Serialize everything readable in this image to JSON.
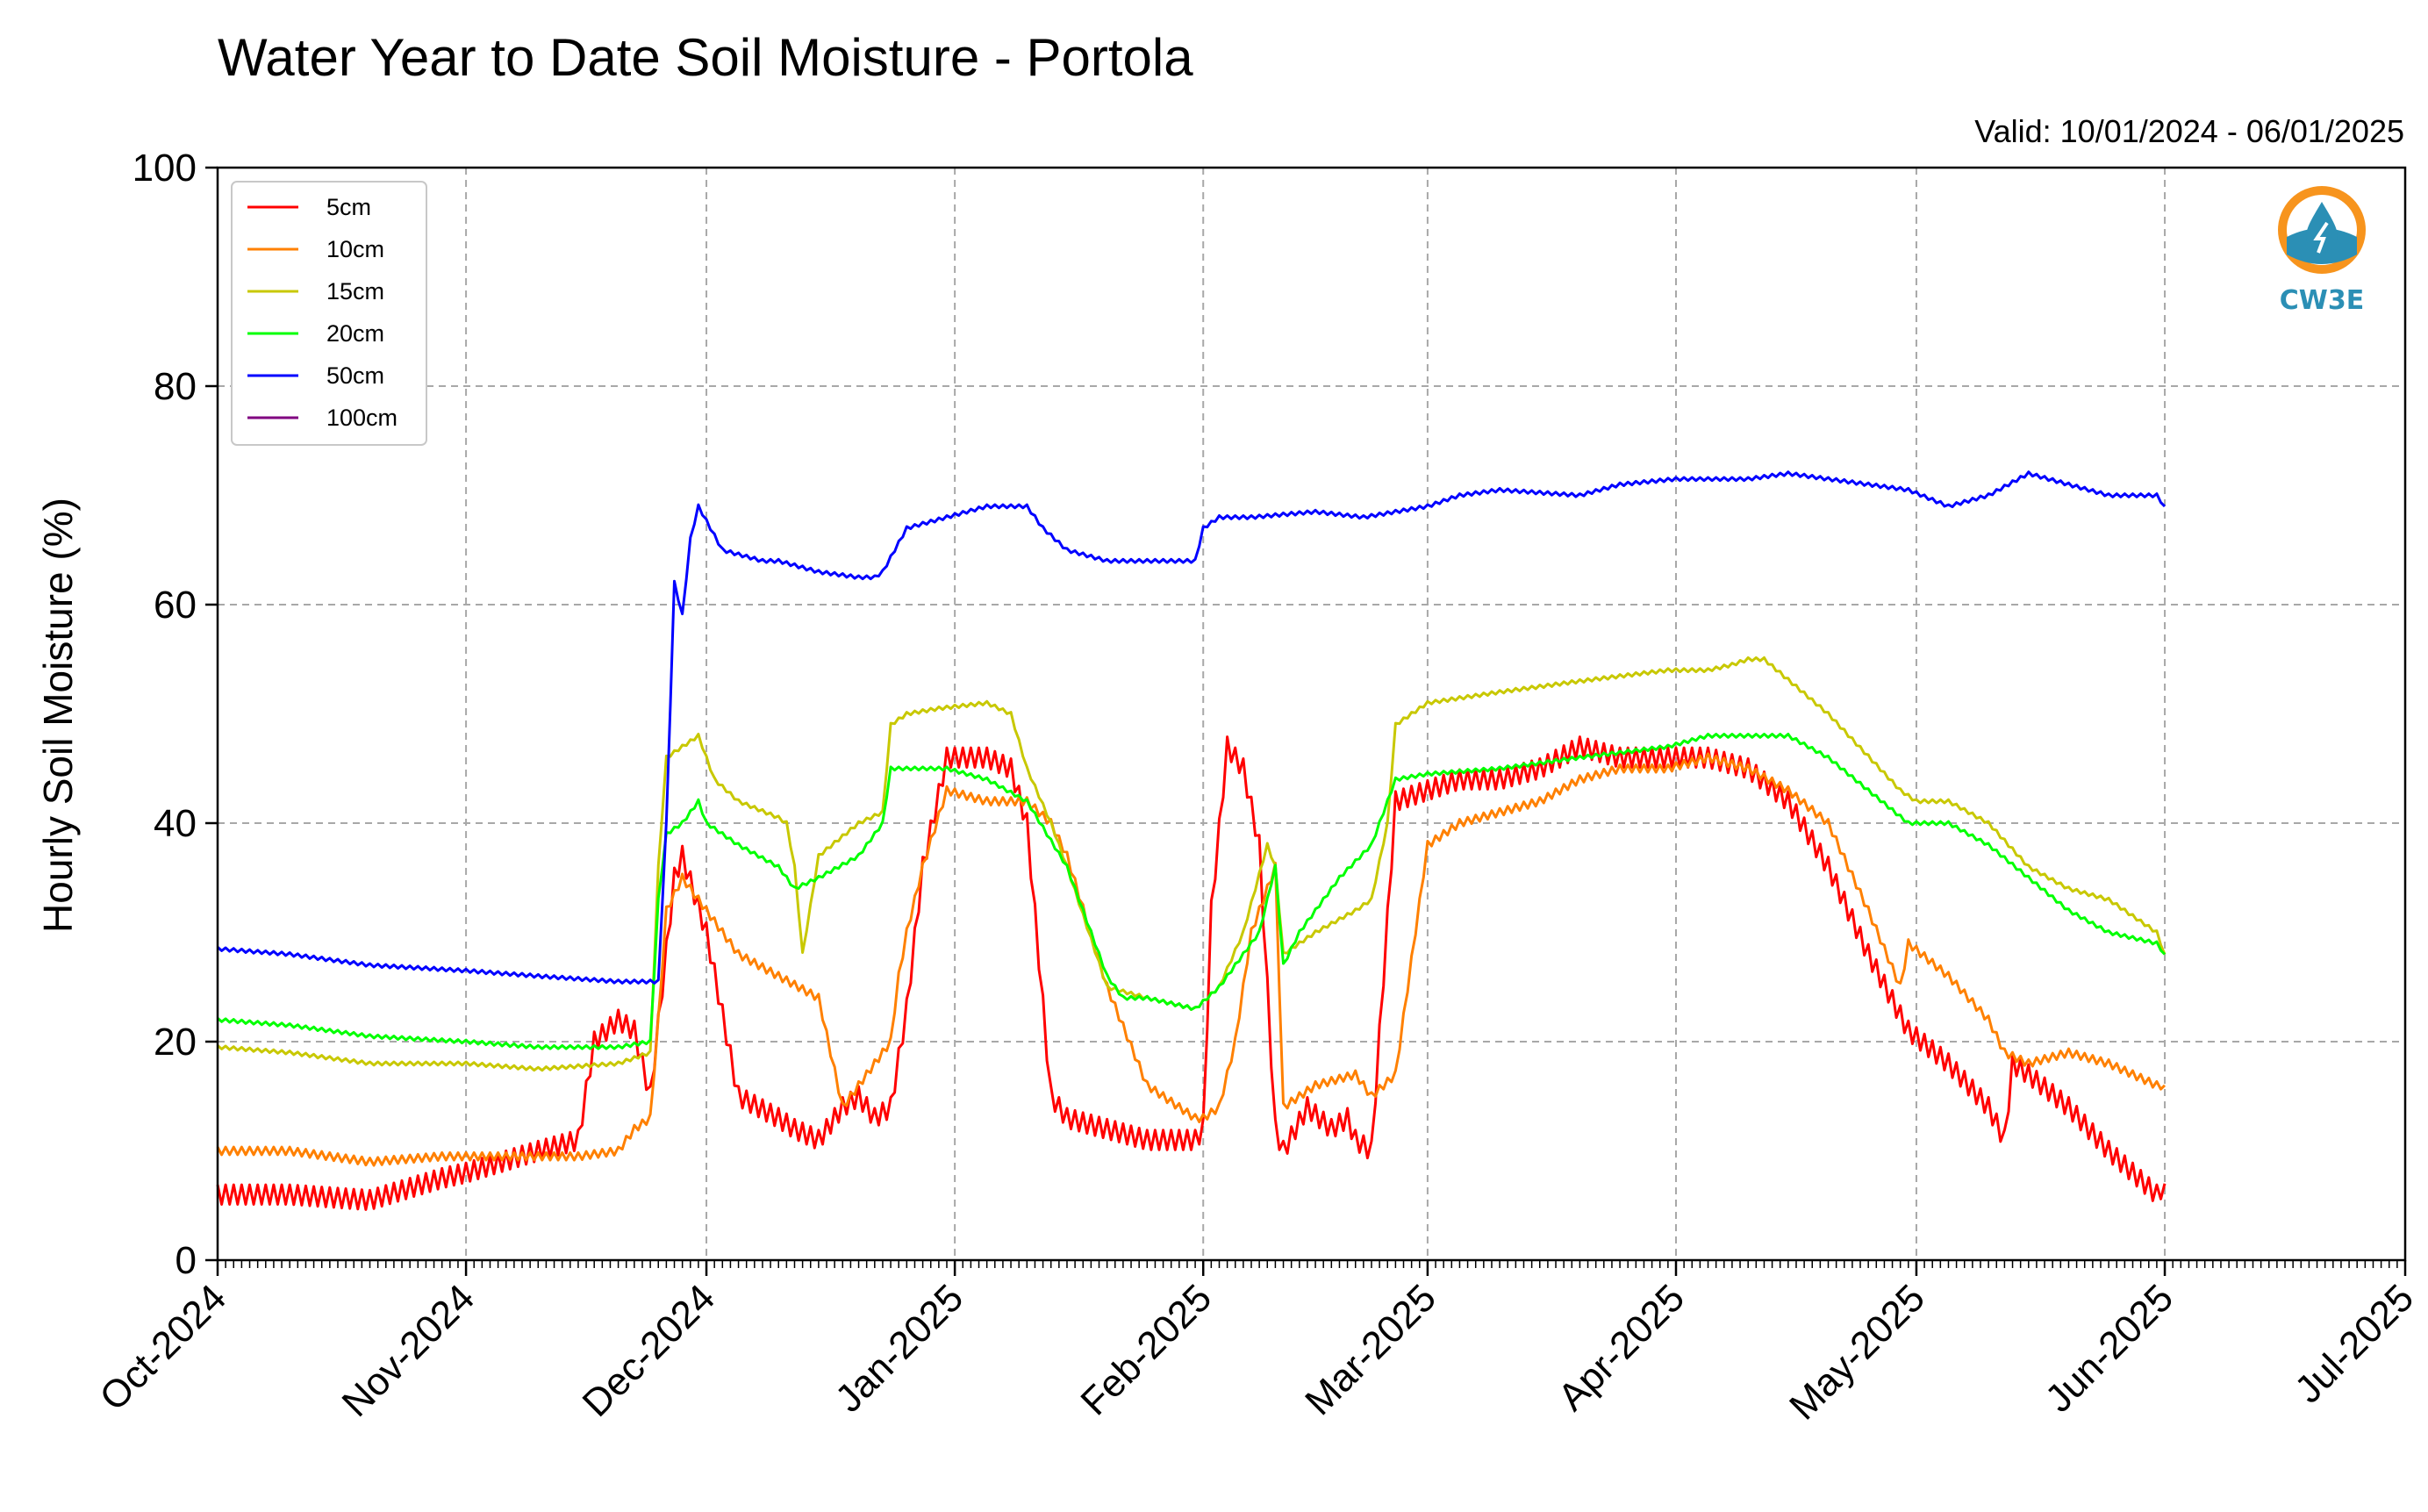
{
  "chart_data": {
    "type": "line",
    "title": "Water Year to Date Soil Moisture - Portola",
    "subtitle": "Valid: 10/01/2024 - 06/01/2025",
    "xlabel": "",
    "ylabel": "Hourly Soil Moisture (%)",
    "ylim": [
      0,
      100
    ],
    "yticks": [
      0,
      20,
      40,
      60,
      80,
      100
    ],
    "xlim": [
      "2024-10-01",
      "2025-07-01"
    ],
    "xticks": [
      "2024-10-01",
      "2024-11-01",
      "2024-12-01",
      "2025-01-01",
      "2025-02-01",
      "2025-03-01",
      "2025-04-01",
      "2025-05-01",
      "2025-06-01",
      "2025-07-01"
    ],
    "xtick_labels": [
      "Oct-2024",
      "Nov-2024",
      "Dec-2024",
      "Jan-2025",
      "Feb-2025",
      "Mar-2025",
      "Apr-2025",
      "May-2025",
      "Jun-2025",
      "Jul-2025"
    ],
    "grid": true,
    "legend_position": "top-left",
    "series": [
      {
        "name": "5cm",
        "color": "#ff0000",
        "x": [
          "2024-10-01",
          "2024-10-10",
          "2024-10-20",
          "2024-10-29",
          "2024-11-01",
          "2024-11-10",
          "2024-11-15",
          "2024-11-17",
          "2024-11-20",
          "2024-11-22",
          "2024-11-24",
          "2024-11-27",
          "2024-11-28",
          "2024-12-01",
          "2024-12-05",
          "2024-12-10",
          "2024-12-12",
          "2024-12-15",
          "2024-12-18",
          "2024-12-20",
          "2024-12-22",
          "2024-12-24",
          "2024-12-26",
          "2024-12-28",
          "2024-12-31",
          "2025-01-02",
          "2025-01-05",
          "2025-01-08",
          "2025-01-10",
          "2025-01-13",
          "2025-01-15",
          "2025-01-20",
          "2025-01-25",
          "2025-01-31",
          "2025-02-01",
          "2025-02-02",
          "2025-02-04",
          "2025-02-06",
          "2025-02-08",
          "2025-02-09",
          "2025-02-10",
          "2025-02-11",
          "2025-02-14",
          "2025-02-17",
          "2025-02-19",
          "2025-02-20",
          "2025-02-22",
          "2025-02-25",
          "2025-03-01",
          "2025-03-05",
          "2025-03-10",
          "2025-03-15",
          "2025-03-20",
          "2025-03-25",
          "2025-03-31",
          "2025-04-05",
          "2025-04-10",
          "2025-04-15",
          "2025-04-20",
          "2025-04-25",
          "2025-04-30",
          "2025-05-05",
          "2025-05-10",
          "2025-05-12",
          "2025-05-13",
          "2025-05-15",
          "2025-05-20",
          "2025-05-25",
          "2025-05-31",
          "2025-06-01"
        ],
        "values": [
          6,
          6,
          5.5,
          7.5,
          8,
          10,
          11,
          20,
          22,
          21,
          15,
          35,
          37,
          30,
          15,
          13,
          12,
          11,
          14,
          15,
          13,
          14,
          23,
          36,
          46,
          46,
          46,
          45,
          40,
          15,
          13,
          12,
          11,
          11,
          12,
          32,
          47,
          45,
          38,
          25,
          12,
          10,
          14,
          12,
          13,
          11,
          10,
          42,
          43,
          44,
          44,
          45,
          47,
          46,
          46,
          46,
          45,
          42,
          36,
          28,
          21,
          18,
          14,
          11,
          18,
          17,
          14,
          10,
          6,
          7
        ]
      },
      {
        "name": "10cm",
        "color": "#ff8000",
        "x": [
          "2024-10-01",
          "2024-10-10",
          "2024-10-20",
          "2024-10-29",
          "2024-11-01",
          "2024-11-10",
          "2024-11-15",
          "2024-11-20",
          "2024-11-22",
          "2024-11-24",
          "2024-11-25",
          "2024-11-26",
          "2024-11-28",
          "2024-12-01",
          "2024-12-05",
          "2024-12-10",
          "2024-12-15",
          "2024-12-18",
          "2024-12-20",
          "2024-12-24",
          "2024-12-25",
          "2024-12-26",
          "2024-12-28",
          "2024-12-31",
          "2025-01-05",
          "2025-01-10",
          "2025-01-13",
          "2025-01-15",
          "2025-01-20",
          "2025-01-25",
          "2025-01-31",
          "2025-02-01",
          "2025-02-03",
          "2025-02-05",
          "2025-02-07",
          "2025-02-10",
          "2025-02-11",
          "2025-02-15",
          "2025-02-20",
          "2025-02-22",
          "2025-02-25",
          "2025-03-01",
          "2025-03-05",
          "2025-03-10",
          "2025-03-15",
          "2025-03-20",
          "2025-03-25",
          "2025-03-31",
          "2025-04-05",
          "2025-04-10",
          "2025-04-15",
          "2025-04-20",
          "2025-04-25",
          "2025-04-29",
          "2025-04-30",
          "2025-05-05",
          "2025-05-10",
          "2025-05-12",
          "2025-05-15",
          "2025-05-20",
          "2025-05-25",
          "2025-05-31",
          "2025-06-01"
        ],
        "values": [
          10,
          10,
          9,
          9.5,
          9.5,
          9.5,
          9.5,
          10,
          12,
          13,
          22,
          32,
          35,
          32,
          28,
          26,
          24,
          14,
          16,
          20,
          26,
          30,
          36,
          43,
          42,
          42,
          40,
          37,
          25,
          16,
          13,
          13,
          14,
          20,
          30,
          36,
          14,
          16,
          17,
          15,
          17,
          38,
          40,
          41,
          42,
          44,
          45,
          45,
          46,
          45,
          43,
          40,
          32,
          25,
          29,
          26,
          22,
          19,
          18,
          19,
          18,
          16,
          16
        ]
      },
      {
        "name": "15cm",
        "color": "#c8c800",
        "x": [
          "2024-10-01",
          "2024-10-10",
          "2024-10-20",
          "2024-11-01",
          "2024-11-10",
          "2024-11-20",
          "2024-11-24",
          "2024-11-25",
          "2024-11-26",
          "2024-11-28",
          "2024-11-30",
          "2024-12-02",
          "2024-12-05",
          "2024-12-10",
          "2024-12-11",
          "2024-12-12",
          "2024-12-13",
          "2024-12-15",
          "2024-12-20",
          "2024-12-23",
          "2024-12-24",
          "2024-12-26",
          "2024-12-30",
          "2025-01-05",
          "2025-01-08",
          "2025-01-10",
          "2025-01-13",
          "2025-01-15",
          "2025-01-20",
          "2025-01-25",
          "2025-01-31",
          "2025-02-03",
          "2025-02-06",
          "2025-02-09",
          "2025-02-10",
          "2025-02-11",
          "2025-02-15",
          "2025-02-20",
          "2025-02-22",
          "2025-02-24",
          "2025-02-25",
          "2025-03-01",
          "2025-03-10",
          "2025-03-20",
          "2025-03-31",
          "2025-04-05",
          "2025-04-08",
          "2025-04-10",
          "2025-04-12",
          "2025-04-20",
          "2025-04-29",
          "2025-05-01",
          "2025-05-05",
          "2025-05-10",
          "2025-05-15",
          "2025-05-20",
          "2025-05-25",
          "2025-05-31",
          "2025-06-01"
        ],
        "values": [
          19.5,
          19,
          18,
          18,
          17.5,
          18,
          19,
          36,
          46,
          47,
          48,
          44,
          42,
          40.5,
          40,
          36,
          28,
          37,
          40,
          41,
          49,
          50,
          50.5,
          51,
          50,
          45,
          40,
          36,
          25,
          24,
          23,
          25,
          30,
          38,
          36,
          28,
          30,
          32,
          33,
          40,
          49,
          51,
          52,
          53,
          54,
          54,
          54.5,
          55,
          55,
          50,
          43,
          42,
          42,
          40,
          36,
          34,
          33,
          30,
          28
        ]
      },
      {
        "name": "20cm",
        "color": "#00ff00",
        "x": [
          "2024-10-01",
          "2024-10-10",
          "2024-10-20",
          "2024-11-01",
          "2024-11-10",
          "2024-11-20",
          "2024-11-24",
          "2024-11-25",
          "2024-11-26",
          "2024-11-28",
          "2024-11-30",
          "2024-12-01",
          "2024-12-05",
          "2024-12-10",
          "2024-12-12",
          "2024-12-15",
          "2024-12-20",
          "2024-12-23",
          "2024-12-24",
          "2024-12-26",
          "2024-12-31",
          "2025-01-05",
          "2025-01-10",
          "2025-01-15",
          "2025-01-20",
          "2025-01-22",
          "2025-01-25",
          "2025-01-31",
          "2025-02-03",
          "2025-02-08",
          "2025-02-10",
          "2025-02-11",
          "2025-02-13",
          "2025-02-18",
          "2025-02-22",
          "2025-02-25",
          "2025-03-01",
          "2025-03-10",
          "2025-03-20",
          "2025-03-31",
          "2025-04-05",
          "2025-04-10",
          "2025-04-15",
          "2025-04-20",
          "2025-04-25",
          "2025-04-30",
          "2025-05-05",
          "2025-05-10",
          "2025-05-15",
          "2025-05-20",
          "2025-05-25",
          "2025-05-31",
          "2025-06-01"
        ],
        "values": [
          22,
          21.5,
          20.5,
          20,
          19.5,
          19.5,
          20,
          33,
          39,
          40,
          42,
          40,
          38,
          36,
          34,
          35,
          37,
          40,
          45,
          45,
          45,
          44,
          42,
          36,
          26,
          24,
          24,
          23,
          25,
          30,
          36,
          27,
          30,
          35,
          38,
          44,
          44.5,
          45,
          46,
          47,
          48,
          48,
          48,
          46,
          43,
          40,
          40,
          38,
          35,
          32,
          30,
          29,
          28
        ]
      },
      {
        "name": "50cm",
        "color": "#0000ff",
        "x": [
          "2024-10-01",
          "2024-10-10",
          "2024-10-20",
          "2024-11-01",
          "2024-11-10",
          "2024-11-20",
          "2024-11-25",
          "2024-11-26",
          "2024-11-27",
          "2024-11-28",
          "2024-11-29",
          "2024-11-30",
          "2024-12-03",
          "2024-12-08",
          "2024-12-10",
          "2024-12-15",
          "2024-12-20",
          "2024-12-22",
          "2024-12-23",
          "2024-12-26",
          "2024-12-31",
          "2025-01-05",
          "2025-01-10",
          "2025-01-12",
          "2025-01-15",
          "2025-01-20",
          "2025-01-25",
          "2025-01-31",
          "2025-02-01",
          "2025-02-03",
          "2025-02-07",
          "2025-02-15",
          "2025-02-21",
          "2025-03-01",
          "2025-03-05",
          "2025-03-10",
          "2025-03-20",
          "2025-03-25",
          "2025-04-01",
          "2025-04-10",
          "2025-04-15",
          "2025-04-20",
          "2025-04-25",
          "2025-04-30",
          "2025-05-05",
          "2025-05-10",
          "2025-05-15",
          "2025-05-20",
          "2025-05-25",
          "2025-05-31",
          "2025-06-01"
        ],
        "values": [
          28.5,
          28,
          27,
          26.5,
          26,
          25.5,
          25.5,
          40,
          62,
          59,
          66,
          69,
          65,
          64,
          64,
          63,
          62.5,
          62.5,
          63,
          67,
          68,
          69,
          69,
          67,
          65,
          64,
          64,
          64,
          67,
          68,
          68,
          68.5,
          68,
          69,
          70,
          70.5,
          70,
          71,
          71.5,
          71.5,
          72,
          71.5,
          71,
          70.5,
          69,
          70,
          72,
          71,
          70,
          70,
          69
        ]
      },
      {
        "name": "100cm",
        "color": "#800080",
        "x": [],
        "values": []
      }
    ]
  },
  "logo": {
    "text": "CW3E",
    "color": "#2b8fb5",
    "accent": "#f7941d"
  }
}
